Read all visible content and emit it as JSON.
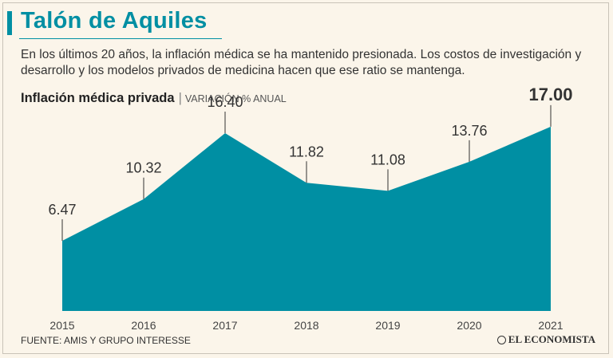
{
  "header": {
    "title": "Talón de Aquiles",
    "subtitle": "En los últimos 20 años, la inflación médica se ha mantenido presionada. Los costos de investigación y desarrollo y los modelos privados de medicina hacen que ese ratio se mantenga."
  },
  "chart_data": {
    "type": "area",
    "title": "Inflación médica privada",
    "unit_label": "VARIACIÓN % ANUAL",
    "categories": [
      "2015",
      "2016",
      "2017",
      "2018",
      "2019",
      "2020",
      "2021"
    ],
    "values": [
      6.47,
      10.32,
      16.4,
      11.82,
      11.08,
      13.76,
      17.0
    ],
    "value_labels": [
      "6.47",
      "10.32",
      "16.40",
      "11.82",
      "11.08",
      "13.76",
      "17.00"
    ],
    "highlight_index": 6,
    "ylim": [
      0,
      17.8
    ],
    "fill_color": "#008fa3"
  },
  "footer": {
    "source": "FUENTE: AMIS Y GRUPO INTERESSE",
    "logo_text": "EL ECONOMISTA"
  },
  "colors": {
    "accent": "#008fa3",
    "background": "#fbf5ea"
  }
}
